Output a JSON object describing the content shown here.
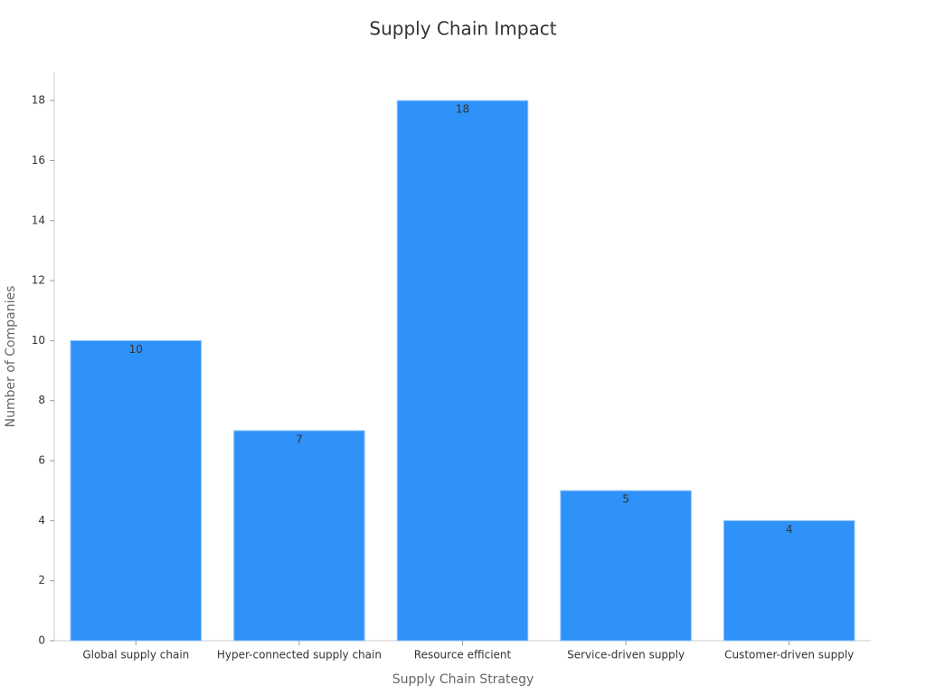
{
  "chart_data": {
    "type": "bar",
    "title": "Supply Chain Impact",
    "x_label": "Supply Chain Strategy",
    "y_label": "Number of Companies",
    "categories": [
      "Global supply chain",
      "Hyper-connected supply chain",
      "Resource efficient",
      "Service-driven supply",
      "Customer-driven supply"
    ],
    "values": [
      10,
      7,
      18,
      5,
      4
    ],
    "color": "#2f92f9",
    "ylim": [
      0,
      19
    ],
    "yticks": [
      0,
      2,
      4,
      6,
      8,
      10,
      12,
      14,
      16,
      18
    ],
    "grid": false
  }
}
